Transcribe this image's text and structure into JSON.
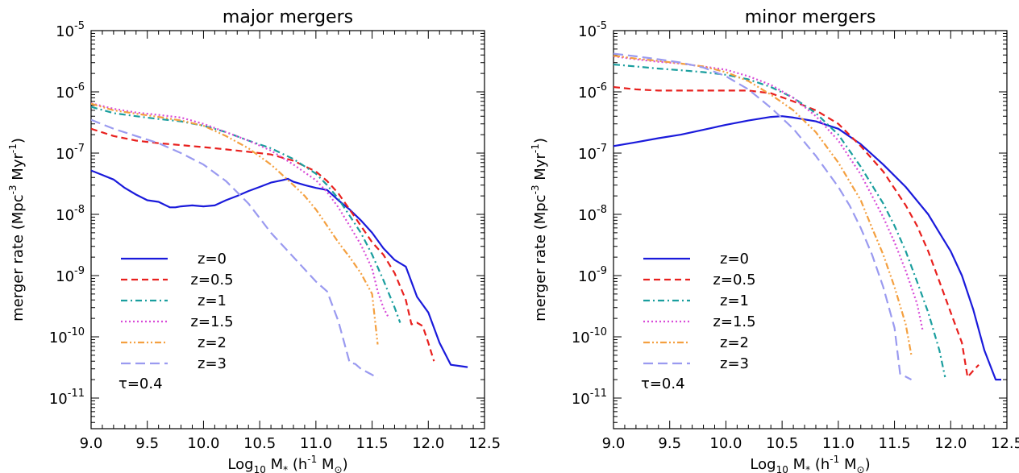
{
  "chart_data": [
    {
      "type": "line",
      "title": "major mergers",
      "xlabel": {
        "prefix": "Log",
        "sub": "10",
        "mid": " M",
        "sub2": "*",
        "suffix": " (h",
        "sup": "-1",
        "tail": " M",
        "sub3": "⊙",
        "end": ")"
      },
      "ylabel": {
        "prefix": "merger rate (Mpc",
        "sup": "-3",
        "mid": " Myr",
        "sup2": "-1",
        "end": ")"
      },
      "xlim": [
        9.0,
        12.5
      ],
      "ylim_log10": [
        -11.5,
        -5
      ],
      "yscale": "log",
      "xticks": [
        "9.0",
        "9.5",
        "10.0",
        "10.5",
        "11.0",
        "11.5",
        "12.0",
        "12.5"
      ],
      "yticks": [
        {
          "base": "10",
          "exp": "-5",
          "log": -5
        },
        {
          "base": "10",
          "exp": "-6",
          "log": -6
        },
        {
          "base": "10",
          "exp": "-7",
          "log": -7
        },
        {
          "base": "10",
          "exp": "-8",
          "log": -8
        },
        {
          "base": "10",
          "exp": "-9",
          "log": -9
        },
        {
          "base": "10",
          "exp": "-10",
          "log": -10
        },
        {
          "base": "10",
          "exp": "-11",
          "log": -11
        }
      ],
      "annotation": "τ=0.4",
      "series": [
        {
          "name": "z=0",
          "color": "#1a1adb",
          "dash": "solid",
          "width": 2.2,
          "x": [
            9.0,
            9.1,
            9.2,
            9.3,
            9.4,
            9.5,
            9.6,
            9.7,
            9.75,
            9.8,
            9.9,
            10.0,
            10.1,
            10.2,
            10.3,
            10.4,
            10.5,
            10.6,
            10.7,
            10.75,
            10.8,
            10.9,
            11.0,
            11.1,
            11.2,
            11.3,
            11.4,
            11.5,
            11.6,
            11.7,
            11.8,
            11.9,
            12.0,
            12.1,
            12.2,
            12.3,
            12.35
          ],
          "y": [
            5.2e-08,
            4.4e-08,
            3.7e-08,
            2.7e-08,
            2.1e-08,
            1.7e-08,
            1.6e-08,
            1.3e-08,
            1.3e-08,
            1.35e-08,
            1.4e-08,
            1.35e-08,
            1.4e-08,
            1.7e-08,
            2e-08,
            2.4e-08,
            2.8e-08,
            3.3e-08,
            3.6e-08,
            3.8e-08,
            3.4e-08,
            3e-08,
            2.7e-08,
            2.5e-08,
            1.7e-08,
            1.2e-08,
            8e-09,
            5e-09,
            2.8e-09,
            1.8e-09,
            1.4e-09,
            4.5e-10,
            2.5e-10,
            8e-11,
            3.5e-11,
            3.3e-11,
            3.2e-11
          ]
        },
        {
          "name": "z=0.5",
          "color": "#e8201e",
          "dash": "8,5",
          "width": 2.2,
          "x": [
            9.0,
            9.2,
            9.4,
            9.6,
            9.8,
            10.0,
            10.2,
            10.4,
            10.6,
            10.8,
            11.0,
            11.1,
            11.2,
            11.3,
            11.4,
            11.5,
            11.6,
            11.7,
            11.8,
            11.85,
            11.9,
            11.95,
            12.0,
            12.05
          ],
          "y": [
            2.5e-07,
            1.9e-07,
            1.6e-07,
            1.45e-07,
            1.35e-07,
            1.25e-07,
            1.15e-07,
            1.05e-07,
            9.5e-08,
            7.5e-08,
            5e-08,
            3.5e-08,
            2.2e-08,
            1.2e-08,
            6.5e-09,
            3.5e-09,
            2.2e-09,
            1.1e-09,
            4e-10,
            1.6e-10,
            1.7e-10,
            1.5e-10,
            8e-11,
            4e-11
          ]
        },
        {
          "name": "z=1",
          "color": "#1a9e9e",
          "dash": "8,4,2,4",
          "width": 2.2,
          "x": [
            9.0,
            9.2,
            9.4,
            9.6,
            9.8,
            10.0,
            10.2,
            10.4,
            10.6,
            10.8,
            11.0,
            11.1,
            11.2,
            11.3,
            11.4,
            11.5,
            11.6,
            11.7,
            11.75
          ],
          "y": [
            5.7e-07,
            4.5e-07,
            4e-07,
            3.6e-07,
            3.3e-07,
            2.8e-07,
            2.2e-07,
            1.6e-07,
            1.2e-07,
            8e-08,
            4.6e-08,
            3e-08,
            1.8e-08,
            9.5e-09,
            5e-09,
            2.2e-09,
            8.5e-10,
            3e-10,
            1.7e-10
          ]
        },
        {
          "name": "z=1.5",
          "color": "#d84bd8",
          "dash": "2,3",
          "width": 2.2,
          "x": [
            9.0,
            9.2,
            9.4,
            9.6,
            9.8,
            10.0,
            10.2,
            10.4,
            10.6,
            10.8,
            11.0,
            11.1,
            11.2,
            11.3,
            11.4,
            11.5,
            11.55,
            11.6,
            11.65
          ],
          "y": [
            6.5e-07,
            5.3e-07,
            4.6e-07,
            4.2e-07,
            3.8e-07,
            3e-07,
            2.2e-07,
            1.6e-07,
            1.1e-07,
            6.5e-08,
            3.6e-08,
            2.3e-08,
            1.3e-08,
            6.5e-09,
            3.2e-09,
            1.3e-09,
            5.5e-10,
            3e-10,
            2e-10
          ]
        },
        {
          "name": "z=2",
          "color": "#f4a040",
          "dash": "8,3,2,3,2,3",
          "width": 2.2,
          "x": [
            9.0,
            9.2,
            9.4,
            9.6,
            9.8,
            10.0,
            10.2,
            10.4,
            10.6,
            10.8,
            10.9,
            11.0,
            11.1,
            11.2,
            11.3,
            11.4,
            11.5,
            11.55
          ],
          "y": [
            6.4e-07,
            5e-07,
            4.4e-07,
            3.9e-07,
            3.4e-07,
            2.8e-07,
            1.9e-07,
            1.2e-07,
            6.5e-08,
            3e-08,
            2e-08,
            1.2e-08,
            6.5e-09,
            3.5e-09,
            2e-09,
            1.1e-09,
            5e-10,
            7.5e-11
          ]
        },
        {
          "name": "z=3",
          "color": "#9a9af0",
          "dash": "12,6",
          "width": 2.2,
          "x": [
            9.0,
            9.2,
            9.4,
            9.6,
            9.8,
            10.0,
            10.2,
            10.4,
            10.6,
            10.8,
            11.0,
            11.1,
            11.2,
            11.3,
            11.35,
            11.4,
            11.5,
            11.55
          ],
          "y": [
            3.5e-07,
            2.5e-07,
            1.9e-07,
            1.45e-07,
            1e-07,
            6.5e-08,
            3.5e-08,
            1.5e-08,
            5e-09,
            2e-09,
            8e-10,
            5.5e-10,
            1.8e-10,
            3.8e-11,
            3.6e-11,
            3e-11,
            2.4e-11,
            2.1e-11
          ]
        }
      ]
    },
    {
      "type": "line",
      "title": "minor mergers",
      "xlabel": {
        "prefix": "Log",
        "sub": "10",
        "mid": " M",
        "sub2": "*",
        "suffix": " (h",
        "sup": "-1",
        "tail": " M",
        "sub3": "⊙",
        "end": ")"
      },
      "ylabel": {
        "prefix": "merger rate (Mpc",
        "sup": "-3",
        "mid": " Myr",
        "sup2": "-1",
        "end": ")"
      },
      "xlim": [
        9.0,
        12.5
      ],
      "ylim_log10": [
        -11.5,
        -5
      ],
      "yscale": "log",
      "xticks": [
        "9.0",
        "9.5",
        "10.0",
        "10.5",
        "11.0",
        "11.5",
        "12.0",
        "12.5"
      ],
      "yticks": [
        {
          "base": "10",
          "exp": "-5",
          "log": -5
        },
        {
          "base": "10",
          "exp": "-6",
          "log": -6
        },
        {
          "base": "10",
          "exp": "-7",
          "log": -7
        },
        {
          "base": "10",
          "exp": "-8",
          "log": -8
        },
        {
          "base": "10",
          "exp": "-9",
          "log": -9
        },
        {
          "base": "10",
          "exp": "-10",
          "log": -10
        },
        {
          "base": "10",
          "exp": "-11",
          "log": -11
        }
      ],
      "annotation": "τ=0.4",
      "series": [
        {
          "name": "z=0",
          "color": "#1a1adb",
          "dash": "solid",
          "width": 2.2,
          "x": [
            9.0,
            9.2,
            9.4,
            9.6,
            9.8,
            10.0,
            10.2,
            10.4,
            10.5,
            10.6,
            10.8,
            11.0,
            11.2,
            11.4,
            11.6,
            11.8,
            11.9,
            12.0,
            12.1,
            12.2,
            12.3,
            12.4,
            12.45
          ],
          "y": [
            1.3e-07,
            1.5e-07,
            1.75e-07,
            2e-07,
            2.4e-07,
            2.9e-07,
            3.4e-07,
            3.9e-07,
            4e-07,
            3.8e-07,
            3.3e-07,
            2.5e-07,
            1.4e-07,
            6.5e-08,
            2.8e-08,
            1e-08,
            5e-09,
            2.5e-09,
            1e-09,
            2.8e-10,
            6e-11,
            2e-11,
            2e-11
          ]
        },
        {
          "name": "z=0.5",
          "color": "#e8201e",
          "dash": "8,5",
          "width": 2.2,
          "x": [
            9.0,
            9.2,
            9.4,
            9.6,
            9.8,
            10.0,
            10.2,
            10.4,
            10.6,
            10.8,
            11.0,
            11.2,
            11.4,
            11.6,
            11.7,
            11.8,
            11.9,
            12.0,
            12.1,
            12.15,
            12.2,
            12.25
          ],
          "y": [
            1.2e-06,
            1.1e-06,
            1.05e-06,
            1.05e-06,
            1.05e-06,
            1.05e-06,
            1.05e-06,
            9.5e-07,
            7e-07,
            5e-07,
            3e-07,
            1.3e-07,
            5e-08,
            1.4e-08,
            6.5e-09,
            2.5e-09,
            8e-10,
            2.5e-10,
            8e-11,
            2.2e-11,
            2.8e-11,
            3.5e-11
          ]
        },
        {
          "name": "z=1",
          "color": "#1a9e9e",
          "dash": "8,4,2,4",
          "width": 2.2,
          "x": [
            9.0,
            9.2,
            9.4,
            9.6,
            9.8,
            10.0,
            10.2,
            10.4,
            10.6,
            10.8,
            11.0,
            11.2,
            11.4,
            11.5,
            11.6,
            11.7,
            11.8,
            11.9,
            11.95
          ],
          "y": [
            2.8e-06,
            2.6e-06,
            2.4e-06,
            2.25e-06,
            2.1e-06,
            1.9e-06,
            1.6e-06,
            1.2e-06,
            8e-07,
            4.5e-07,
            2e-07,
            6e-08,
            1.5e-08,
            6.5e-09,
            2.5e-09,
            8e-10,
            2.5e-10,
            6e-11,
            2.2e-11
          ]
        },
        {
          "name": "z=1.5",
          "color": "#d84bd8",
          "dash": "2,3",
          "width": 2.2,
          "x": [
            9.0,
            9.2,
            9.4,
            9.6,
            9.8,
            10.0,
            10.2,
            10.4,
            10.6,
            10.8,
            11.0,
            11.2,
            11.4,
            11.5,
            11.6,
            11.7,
            11.75
          ],
          "y": [
            3.8e-06,
            3.4e-06,
            3.1e-06,
            2.9e-06,
            2.6e-06,
            2.3e-06,
            1.8e-06,
            1.3e-06,
            8e-07,
            4e-07,
            1.6e-07,
            4.5e-08,
            9e-09,
            3.5e-09,
            1.2e-09,
            3.5e-10,
            1.3e-10
          ]
        },
        {
          "name": "z=2",
          "color": "#f4a040",
          "dash": "8,3,2,3,2,3",
          "width": 2.2,
          "x": [
            9.0,
            9.2,
            9.4,
            9.6,
            9.8,
            10.0,
            10.2,
            10.4,
            10.6,
            10.8,
            11.0,
            11.2,
            11.3,
            11.4,
            11.5,
            11.6,
            11.65
          ],
          "y": [
            3.9e-06,
            3.5e-06,
            3.2e-06,
            2.9e-06,
            2.6e-06,
            2.1e-06,
            1.5e-06,
            9e-07,
            5e-07,
            2.2e-07,
            7e-08,
            1.7e-08,
            6e-09,
            2.2e-09,
            6.5e-10,
            1.6e-10,
            5e-11
          ]
        },
        {
          "name": "z=3",
          "color": "#9a9af0",
          "dash": "12,6",
          "width": 2.2,
          "x": [
            9.0,
            9.2,
            9.4,
            9.6,
            9.8,
            10.0,
            10.2,
            10.4,
            10.6,
            10.8,
            11.0,
            11.1,
            11.2,
            11.3,
            11.4,
            11.5,
            11.55,
            11.65
          ],
          "y": [
            4.2e-06,
            3.8e-06,
            3.4e-06,
            3e-06,
            2.5e-06,
            1.8e-06,
            1.1e-06,
            5.5e-07,
            2.5e-07,
            9e-08,
            2.8e-08,
            1.4e-08,
            6e-09,
            2.2e-09,
            6.5e-10,
            1.4e-10,
            2.5e-11,
            2e-11
          ]
        }
      ]
    }
  ]
}
